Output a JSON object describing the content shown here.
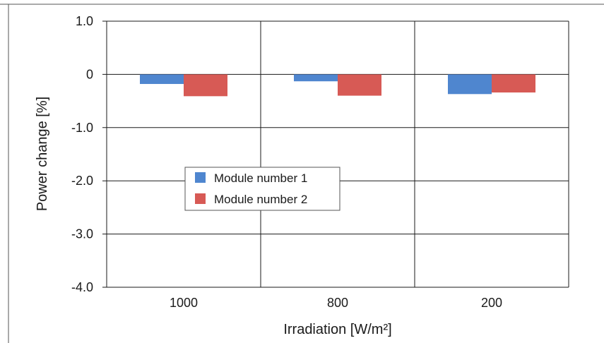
{
  "colors": {
    "module1": "#4f86cf",
    "module2": "#d75a55",
    "grid": "#1a1a1a",
    "frame": "#555555"
  },
  "chart_data": {
    "type": "bar",
    "title": "",
    "xlabel": "Irradiation [W/m²]",
    "ylabel": "Power change [%]",
    "categories": [
      "1000",
      "800",
      "200"
    ],
    "series": [
      {
        "name": "Module number 1",
        "values": [
          -0.18,
          -0.13,
          -0.37
        ]
      },
      {
        "name": "Module number 2",
        "values": [
          -0.41,
          -0.4,
          -0.34
        ]
      }
    ],
    "ylim": [
      -4.0,
      1.0
    ],
    "yticks": [
      "1.0",
      "0",
      "-1.0",
      "-2.0",
      "-3.0",
      "-4.0"
    ],
    "grid": true,
    "legend": "center-left"
  }
}
